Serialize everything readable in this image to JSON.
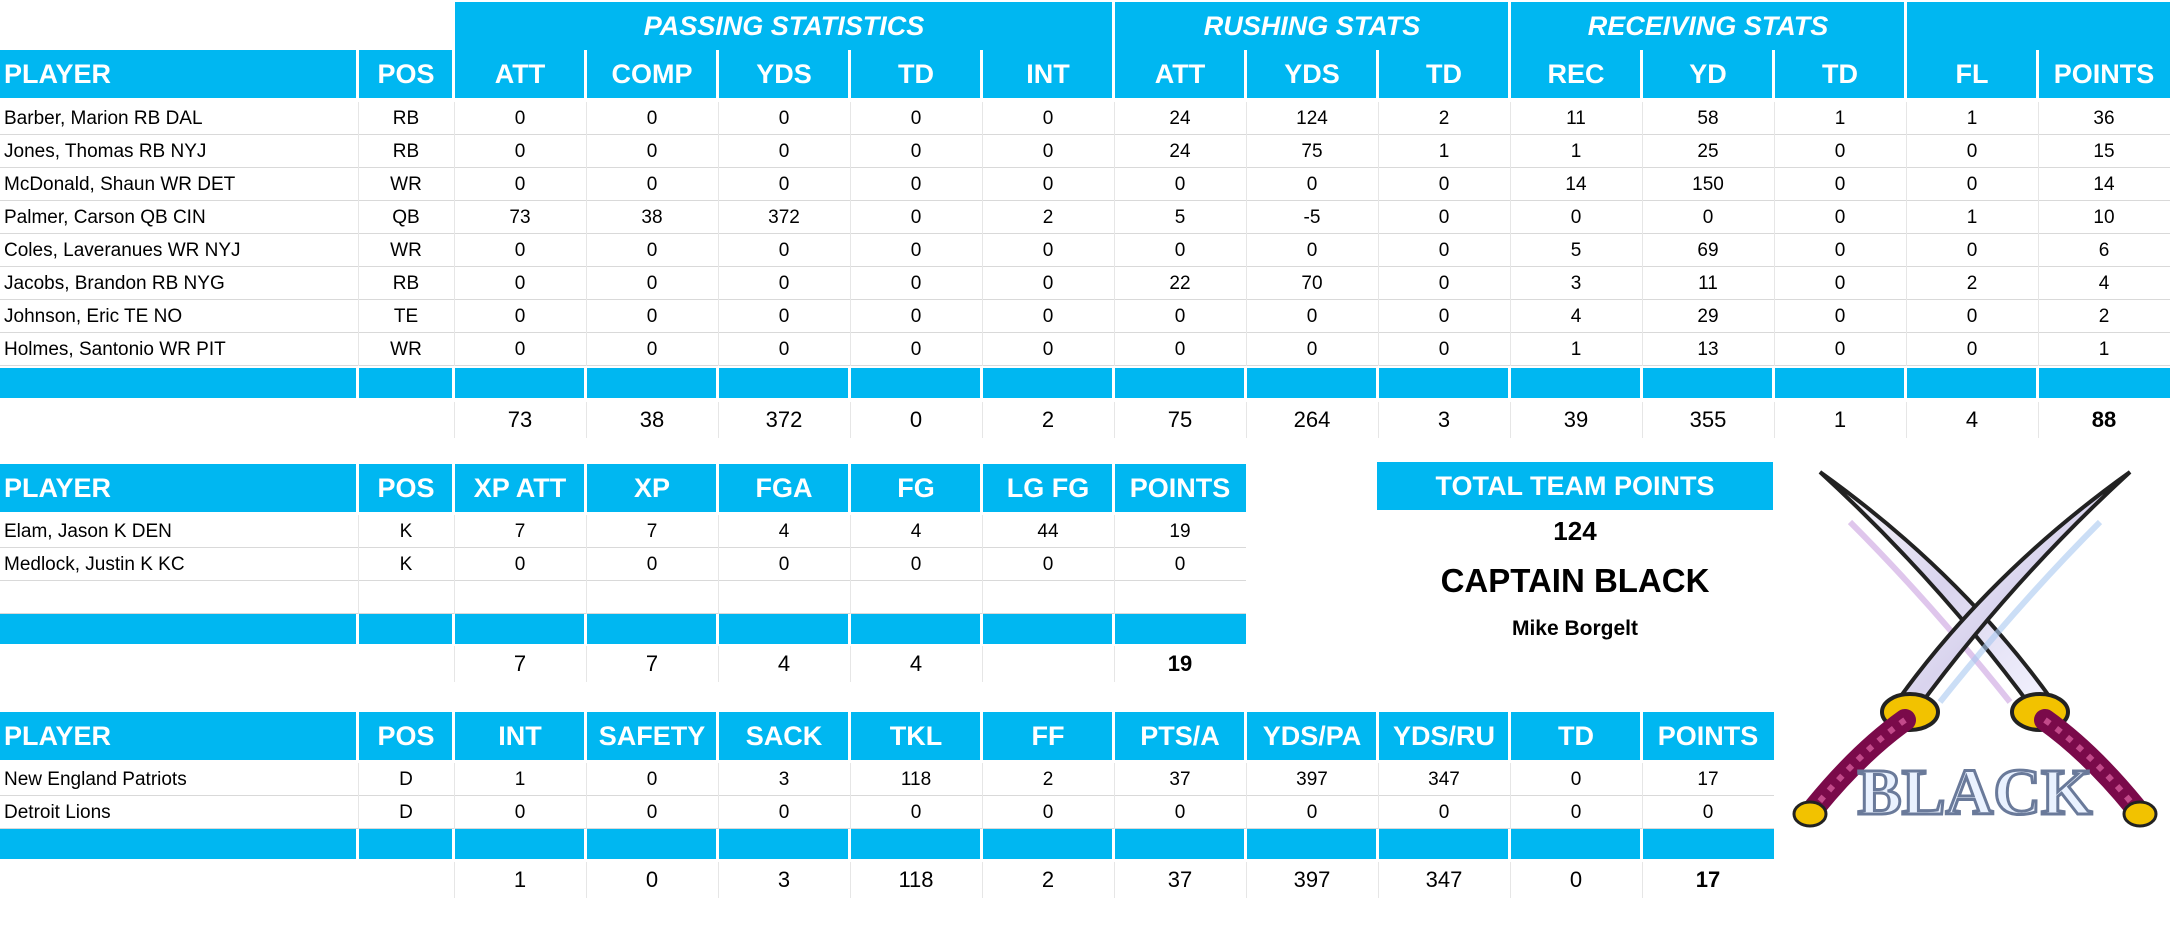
{
  "offense": {
    "group_headers": [
      "PASSING STATISTICS",
      "RUSHING STATS",
      "RECEIVING STATS"
    ],
    "columns": [
      "PLAYER",
      "POS",
      "ATT",
      "COMP",
      "YDS",
      "TD",
      "INT",
      "ATT",
      "YDS",
      "TD",
      "REC",
      "YD",
      "TD",
      "FL",
      "POINTS"
    ],
    "rows": [
      [
        "Barber, Marion RB DAL",
        "RB",
        "0",
        "0",
        "0",
        "0",
        "0",
        "24",
        "124",
        "2",
        "11",
        "58",
        "1",
        "1",
        "36"
      ],
      [
        "Jones, Thomas RB NYJ",
        "RB",
        "0",
        "0",
        "0",
        "0",
        "0",
        "24",
        "75",
        "1",
        "1",
        "25",
        "0",
        "0",
        "15"
      ],
      [
        "McDonald, Shaun WR DET",
        "WR",
        "0",
        "0",
        "0",
        "0",
        "0",
        "0",
        "0",
        "0",
        "14",
        "150",
        "0",
        "0",
        "14"
      ],
      [
        "Palmer, Carson QB CIN",
        "QB",
        "73",
        "38",
        "372",
        "0",
        "2",
        "5",
        "-5",
        "0",
        "0",
        "0",
        "0",
        "1",
        "10"
      ],
      [
        "Coles, Laveranues WR NYJ",
        "WR",
        "0",
        "0",
        "0",
        "0",
        "0",
        "0",
        "0",
        "0",
        "5",
        "69",
        "0",
        "0",
        "6"
      ],
      [
        "Jacobs, Brandon RB NYG",
        "RB",
        "0",
        "0",
        "0",
        "0",
        "0",
        "22",
        "70",
        "0",
        "3",
        "11",
        "0",
        "2",
        "4"
      ],
      [
        "Johnson, Eric TE NO",
        "TE",
        "0",
        "0",
        "0",
        "0",
        "0",
        "0",
        "0",
        "0",
        "4",
        "29",
        "0",
        "0",
        "2"
      ],
      [
        "Holmes, Santonio WR PIT",
        "WR",
        "0",
        "0",
        "0",
        "0",
        "0",
        "0",
        "0",
        "0",
        "1",
        "13",
        "0",
        "0",
        "1"
      ]
    ],
    "totals": [
      "73",
      "38",
      "372",
      "0",
      "2",
      "75",
      "264",
      "3",
      "39",
      "355",
      "1",
      "4",
      "88"
    ]
  },
  "kicking": {
    "columns": [
      "PLAYER",
      "POS",
      "XP ATT",
      "XP",
      "FGA",
      "FG",
      "LG FG",
      "POINTS"
    ],
    "rows": [
      [
        "Elam, Jason K DEN",
        "K",
        "7",
        "7",
        "4",
        "4",
        "44",
        "19"
      ],
      [
        "Medlock, Justin K KC",
        "K",
        "0",
        "0",
        "0",
        "0",
        "0",
        "0"
      ]
    ],
    "totals": [
      "7",
      "7",
      "4",
      "4",
      "",
      "19"
    ]
  },
  "defense": {
    "columns": [
      "PLAYER",
      "POS",
      "INT",
      "SAFETY",
      "SACK",
      "TKL",
      "FF",
      "PTS/A",
      "YDS/PA",
      "YDS/RU",
      "TD",
      "POINTS"
    ],
    "rows": [
      [
        "New England Patriots",
        "D",
        "1",
        "0",
        "3",
        "118",
        "2",
        "37",
        "397",
        "347",
        "0",
        "17"
      ],
      [
        "Detroit Lions",
        "D",
        "0",
        "0",
        "0",
        "0",
        "0",
        "0",
        "0",
        "0",
        "0",
        "0"
      ]
    ],
    "totals": [
      "1",
      "0",
      "3",
      "118",
      "2",
      "37",
      "397",
      "347",
      "0",
      "17"
    ]
  },
  "summary": {
    "total_label": "TOTAL TEAM POINTS",
    "total_value": "124",
    "team_name": "CAPTAIN BLACK",
    "owner": "Mike Borgelt"
  },
  "logo": {
    "text": "BLACK",
    "icon": "crossed-swords-logo"
  },
  "colors": {
    "header": "#00b7f1",
    "header_text": "#ffffff",
    "sword_handle": "#7a0a4a",
    "sword_guard": "#f2c200"
  }
}
